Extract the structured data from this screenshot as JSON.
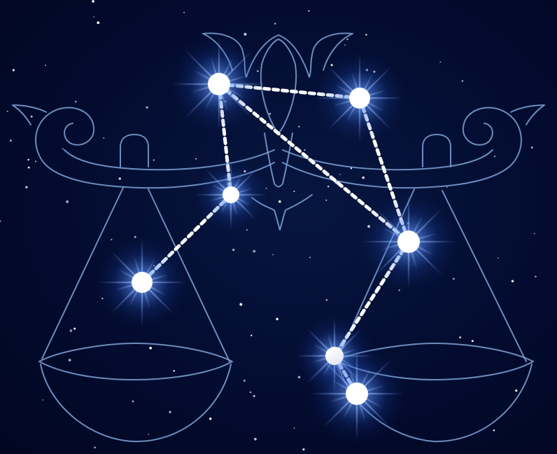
{
  "scene": {
    "subject": "constellation",
    "colors": {
      "sky": "#030c30",
      "outline": "#7fa3d6",
      "star": "#ffffff",
      "glow": "#3f7dff"
    }
  }
}
